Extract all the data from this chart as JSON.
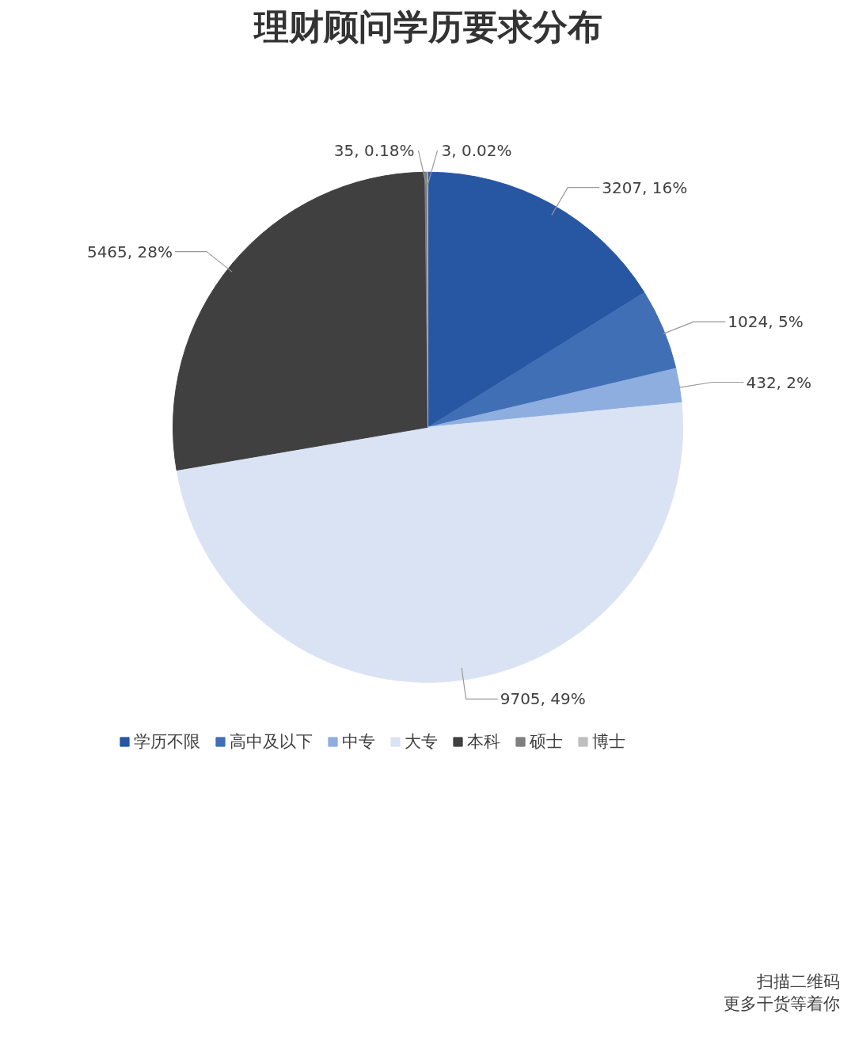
{
  "chart_data": {
    "type": "pie",
    "title": "理财顾问学历要求分布",
    "categories": [
      "学历不限",
      "高中及以下",
      "中专",
      "大专",
      "本科",
      "硕士",
      "博士"
    ],
    "values": [
      3207,
      1024,
      432,
      9705,
      5465,
      35,
      3
    ],
    "colors": [
      "#2756a3",
      "#416fb5",
      "#8eaee0",
      "#dae3f3",
      "#404040",
      "#7f7f7f",
      "#bfbfbf"
    ],
    "value_labels": [
      "3207, 16%",
      "1024, 5%",
      "432, 2%",
      "9705, 49%",
      "5465, 28%",
      "35, 0.18%",
      "3, 0.02%"
    ],
    "legend": "bottom",
    "annotations": [
      "扫描二维码",
      "更多干货等着你"
    ]
  }
}
